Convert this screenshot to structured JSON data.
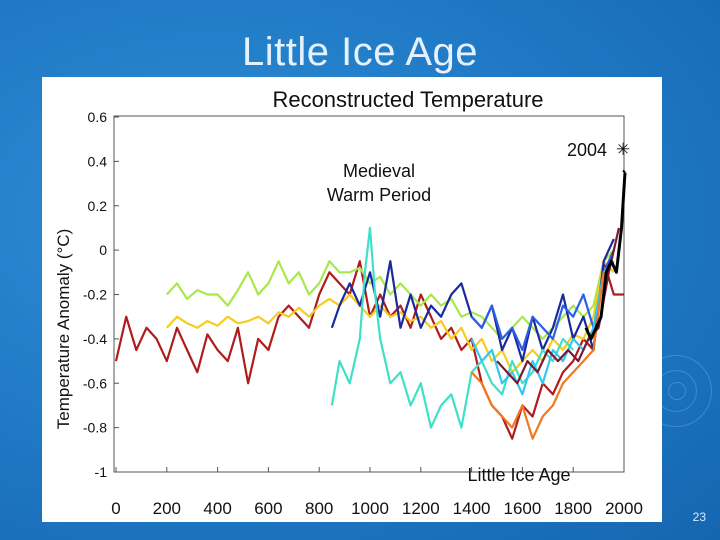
{
  "slide": {
    "title": "Little Ice Age",
    "page_number": "23"
  },
  "chart_data": {
    "type": "line",
    "title": "Reconstructed Temperature",
    "xlabel": "",
    "ylabel": "Temperature Anomaly (°C)",
    "xlim": [
      0,
      2000
    ],
    "ylim": [
      -1,
      0.6
    ],
    "x_ticks": [
      0,
      200,
      400,
      600,
      800,
      1000,
      1200,
      1400,
      1600,
      1800,
      2000
    ],
    "y_ticks": [
      0.6,
      0.4,
      0.2,
      0,
      -0.2,
      -0.4,
      -0.6,
      -0.8,
      -1
    ],
    "y_tick_labels": [
      "0.6",
      "0.4",
      "0.2",
      "0",
      "-0.2",
      "-0.4",
      "-0.6",
      "-0.8",
      "-1"
    ],
    "annotations": {
      "medieval": [
        "Medieval",
        "Warm Period"
      ],
      "little_ice_age": "Little Ice Age",
      "year_2004": "2004",
      "star": "✳"
    },
    "series": [
      {
        "name": "series-dark-red",
        "color": "#b01c1c",
        "x": [
          0,
          40,
          80,
          120,
          160,
          200,
          240,
          280,
          320,
          360,
          400,
          440,
          480,
          520,
          560,
          600,
          640,
          680,
          720,
          760,
          800,
          840,
          880,
          920,
          960,
          1000,
          1040,
          1080,
          1120,
          1160,
          1200,
          1240,
          1280,
          1320,
          1360,
          1400,
          1440,
          1480,
          1520,
          1560,
          1600,
          1640,
          1680,
          1720,
          1760,
          1800,
          1840,
          1880,
          1920,
          1960,
          2000
        ],
        "values": [
          -0.5,
          -0.3,
          -0.45,
          -0.35,
          -0.4,
          -0.5,
          -0.35,
          -0.45,
          -0.55,
          -0.38,
          -0.45,
          -0.5,
          -0.35,
          -0.6,
          -0.4,
          -0.45,
          -0.3,
          -0.25,
          -0.3,
          -0.35,
          -0.2,
          -0.1,
          -0.15,
          -0.2,
          -0.05,
          -0.3,
          -0.2,
          -0.3,
          -0.25,
          -0.35,
          -0.2,
          -0.3,
          -0.4,
          -0.35,
          -0.45,
          -0.4,
          -0.6,
          -0.7,
          -0.75,
          -0.85,
          -0.7,
          -0.75,
          -0.6,
          -0.65,
          -0.55,
          -0.5,
          -0.4,
          -0.45,
          -0.05,
          -0.2,
          -0.2
        ]
      },
      {
        "name": "series-light-green",
        "color": "#a8e84a",
        "x": [
          200,
          240,
          280,
          320,
          360,
          400,
          440,
          480,
          520,
          560,
          600,
          640,
          680,
          720,
          760,
          800,
          840,
          880,
          920,
          960,
          1000,
          1040,
          1080,
          1120,
          1160,
          1200,
          1240,
          1280,
          1320,
          1360,
          1400,
          1440,
          1480,
          1520,
          1560,
          1600,
          1640,
          1680,
          1720,
          1760,
          1800,
          1840,
          1880,
          1920,
          1960
        ],
        "values": [
          -0.2,
          -0.15,
          -0.22,
          -0.18,
          -0.2,
          -0.2,
          -0.25,
          -0.18,
          -0.1,
          -0.2,
          -0.15,
          -0.05,
          -0.15,
          -0.1,
          -0.2,
          -0.15,
          -0.05,
          -0.1,
          -0.1,
          -0.08,
          -0.15,
          -0.12,
          -0.2,
          -0.15,
          -0.2,
          -0.25,
          -0.2,
          -0.25,
          -0.22,
          -0.3,
          -0.28,
          -0.3,
          -0.35,
          -0.4,
          -0.35,
          -0.3,
          -0.35,
          -0.4,
          -0.35,
          -0.3,
          -0.25,
          -0.3,
          -0.25,
          -0.05,
          0.0
        ]
      },
      {
        "name": "series-yellow",
        "color": "#f5cc20",
        "x": [
          200,
          240,
          280,
          320,
          360,
          400,
          440,
          480,
          520,
          560,
          600,
          640,
          680,
          720,
          760,
          800,
          840,
          880,
          920,
          960,
          1000,
          1040,
          1080,
          1120,
          1160,
          1200,
          1240,
          1280,
          1320,
          1360,
          1400,
          1440,
          1480,
          1520,
          1560,
          1600,
          1640,
          1680,
          1720,
          1760,
          1800,
          1840,
          1880,
          1920,
          1960
        ],
        "values": [
          -0.35,
          -0.3,
          -0.33,
          -0.35,
          -0.32,
          -0.34,
          -0.3,
          -0.33,
          -0.32,
          -0.3,
          -0.33,
          -0.28,
          -0.3,
          -0.26,
          -0.3,
          -0.25,
          -0.22,
          -0.25,
          -0.2,
          -0.25,
          -0.3,
          -0.25,
          -0.3,
          -0.28,
          -0.32,
          -0.3,
          -0.35,
          -0.32,
          -0.4,
          -0.35,
          -0.45,
          -0.4,
          -0.5,
          -0.45,
          -0.55,
          -0.5,
          -0.45,
          -0.5,
          -0.4,
          -0.45,
          -0.38,
          -0.4,
          -0.3,
          -0.05,
          -0.1
        ]
      },
      {
        "name": "series-navy",
        "color": "#1a2a9c",
        "x": [
          850,
          880,
          920,
          960,
          1000,
          1040,
          1080,
          1120,
          1160,
          1200,
          1240,
          1280,
          1320,
          1360,
          1400,
          1440,
          1480,
          1520,
          1560,
          1600,
          1640,
          1680,
          1720,
          1760,
          1800,
          1840,
          1880,
          1920,
          1960
        ],
        "values": [
          -0.35,
          -0.25,
          -0.15,
          -0.25,
          -0.1,
          -0.3,
          -0.05,
          -0.35,
          -0.2,
          -0.35,
          -0.25,
          -0.3,
          -0.2,
          -0.15,
          -0.3,
          -0.35,
          -0.25,
          -0.45,
          -0.35,
          -0.5,
          -0.3,
          -0.45,
          -0.35,
          -0.2,
          -0.4,
          -0.3,
          -0.45,
          -0.05,
          0.05
        ]
      },
      {
        "name": "series-teal",
        "color": "#40e0c8",
        "x": [
          850,
          880,
          920,
          960,
          980,
          1000,
          1020,
          1040,
          1080,
          1120,
          1160,
          1200,
          1240,
          1280,
          1320,
          1360,
          1400,
          1440,
          1480,
          1520,
          1560,
          1600,
          1640,
          1680,
          1720,
          1760,
          1800
        ],
        "values": [
          -0.7,
          -0.5,
          -0.6,
          -0.4,
          -0.1,
          0.1,
          -0.2,
          -0.4,
          -0.6,
          -0.55,
          -0.7,
          -0.6,
          -0.8,
          -0.7,
          -0.65,
          -0.8,
          -0.55,
          -0.5,
          -0.6,
          -0.65,
          -0.5,
          -0.6,
          -0.55,
          -0.45,
          -0.5,
          -0.4,
          -0.45
        ]
      },
      {
        "name": "series-blue",
        "color": "#2a60e8",
        "x": [
          1400,
          1440,
          1480,
          1520,
          1560,
          1600,
          1640,
          1680,
          1720,
          1760,
          1800,
          1840,
          1880,
          1920,
          1960
        ],
        "values": [
          -0.3,
          -0.35,
          -0.25,
          -0.4,
          -0.35,
          -0.45,
          -0.3,
          -0.35,
          -0.4,
          -0.25,
          -0.3,
          -0.2,
          -0.35,
          -0.1,
          0.0
        ]
      },
      {
        "name": "series-cyan",
        "color": "#30c8f0",
        "x": [
          1400,
          1440,
          1480,
          1520,
          1560,
          1600,
          1640,
          1680,
          1720,
          1760,
          1800,
          1840,
          1880,
          1920,
          1960
        ],
        "values": [
          -0.4,
          -0.5,
          -0.45,
          -0.6,
          -0.55,
          -0.65,
          -0.5,
          -0.6,
          -0.45,
          -0.5,
          -0.4,
          -0.45,
          -0.35,
          -0.1,
          -0.05
        ]
      },
      {
        "name": "series-orange",
        "color": "#f07820",
        "x": [
          1400,
          1440,
          1480,
          1520,
          1560,
          1600,
          1640,
          1680,
          1720,
          1760,
          1800,
          1840,
          1880,
          1920
        ],
        "values": [
          -0.55,
          -0.6,
          -0.7,
          -0.75,
          -0.8,
          -0.7,
          -0.85,
          -0.75,
          -0.7,
          -0.6,
          -0.55,
          -0.5,
          -0.45,
          -0.1
        ]
      },
      {
        "name": "series-maroon",
        "color": "#7a1a30",
        "x": [
          1500,
          1540,
          1580,
          1620,
          1660,
          1700,
          1740,
          1780,
          1820,
          1860,
          1900,
          1940,
          1980
        ],
        "values": [
          -0.5,
          -0.55,
          -0.6,
          -0.5,
          -0.55,
          -0.45,
          -0.5,
          -0.45,
          -0.5,
          -0.4,
          -0.35,
          -0.1,
          0.1
        ]
      },
      {
        "name": "series-instrumental",
        "color": "#000000",
        "x": [
          1850,
          1870,
          1890,
          1910,
          1930,
          1950,
          1970,
          1990,
          2004
        ],
        "values": [
          -0.35,
          -0.4,
          -0.35,
          -0.3,
          -0.1,
          -0.05,
          -0.1,
          0.1,
          0.35
        ]
      }
    ]
  }
}
